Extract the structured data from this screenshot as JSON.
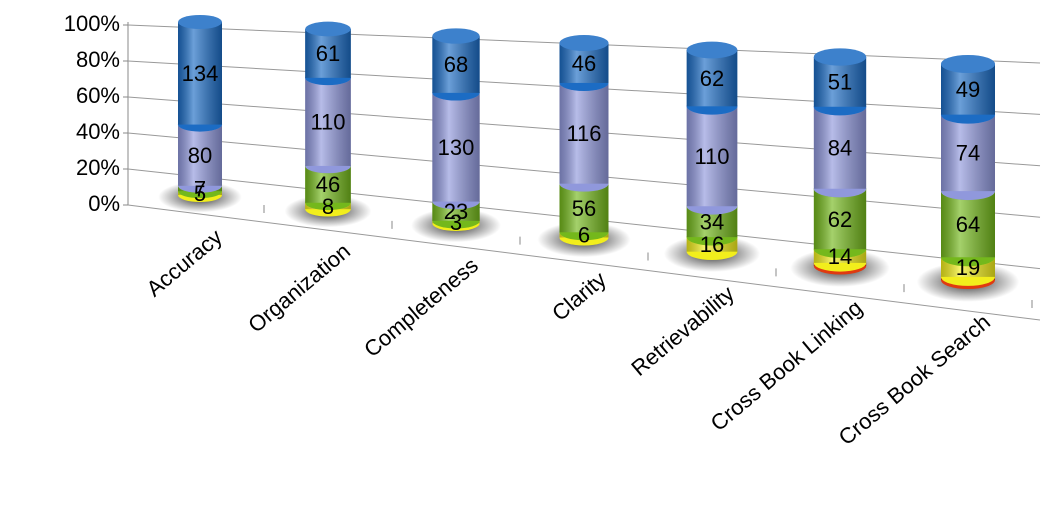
{
  "chart_data": {
    "type": "stacked-cylinder-100",
    "categories": [
      "Accuracy",
      "Organization",
      "Completeness",
      "Clarity",
      "Retrievability",
      "Cross Book Linking",
      "Cross Book Search"
    ],
    "series": [
      {
        "color": "#e03a10",
        "values": [
          null,
          null,
          null,
          null,
          null,
          3,
          3
        ],
        "show_labels": false
      },
      {
        "color": "#f2ee1c",
        "values": [
          5,
          8,
          3,
          6,
          16,
          14,
          19
        ]
      },
      {
        "color": "#74b81c",
        "values": [
          7,
          46,
          23,
          56,
          34,
          62,
          64
        ]
      },
      {
        "color": "#9098dc",
        "values": [
          80,
          110,
          130,
          116,
          110,
          84,
          74
        ]
      },
      {
        "color": "#1c6cc4",
        "values": [
          134,
          61,
          68,
          46,
          62,
          51,
          49
        ]
      }
    ],
    "ylim": [
      0,
      100
    ],
    "yticks": [
      {
        "value": 0,
        "label": "0%"
      },
      {
        "value": 20,
        "label": "20%"
      },
      {
        "value": 40,
        "label": "40%"
      },
      {
        "value": 60,
        "label": "60%"
      },
      {
        "value": 80,
        "label": "80%"
      },
      {
        "value": 100,
        "label": "100%"
      }
    ],
    "grid": true
  }
}
